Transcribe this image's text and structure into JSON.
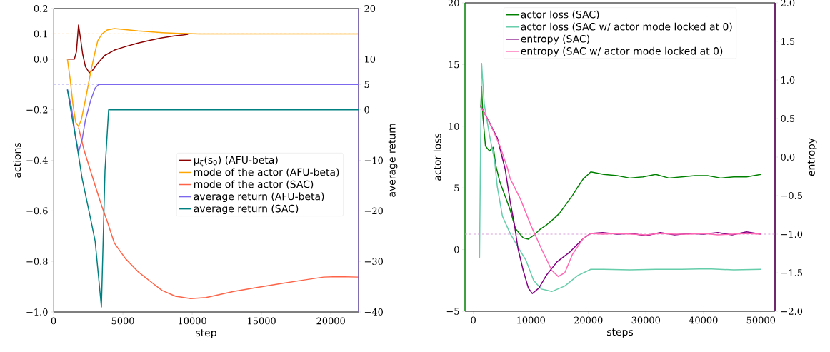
{
  "chart_data": [
    {
      "type": "line",
      "xlabel": "step",
      "ylabel": "actions",
      "y2label": "average return",
      "legend": "center right",
      "xlim": [
        0,
        22000
      ],
      "ylim": [
        -1.0,
        0.2
      ],
      "y2lim": [
        -40,
        20
      ],
      "xticks": [
        0,
        5000,
        10000,
        15000,
        20000
      ],
      "yticks": [
        {
          "value": -1.0,
          "label": "−1.0"
        },
        {
          "value": -0.8,
          "label": "−0.8"
        },
        {
          "value": -0.6,
          "label": "−0.6"
        },
        {
          "value": -0.4,
          "label": "−0.4"
        },
        {
          "value": -0.2,
          "label": "−0.2"
        },
        {
          "value": 0.0,
          "label": "0.0"
        },
        {
          "value": 0.1,
          "label": "0.1"
        },
        {
          "value": 0.2,
          "label": "0.2"
        }
      ],
      "y2ticks": [
        {
          "value": -40,
          "label": "−40"
        },
        {
          "value": -30,
          "label": "−30"
        },
        {
          "value": -20,
          "label": "−20"
        },
        {
          "value": -10,
          "label": "−10"
        },
        0,
        5,
        10,
        20
      ],
      "ref_lines": [
        {
          "axis": "y",
          "value": 0.1,
          "color": "#ffd8a0",
          "line_style": "dashed"
        },
        {
          "axis": "y2",
          "value": 5,
          "color": "#c4bdf5",
          "line_style": "dashed"
        }
      ],
      "series": [
        {
          "name": "μ$_{ζ}$(s$_{0}$) (AFU-beta)",
          "color": "#8b0000",
          "x": [
            1000,
            1500,
            1650,
            1800,
            1950,
            2100,
            2300,
            2580,
            2800,
            3200,
            3700,
            4400,
            5200,
            6100,
            7000,
            7800,
            8700,
            9700
          ],
          "values": [
            0.0,
            0.0,
            0.03,
            0.135,
            0.08,
            0.02,
            -0.03,
            -0.054,
            -0.045,
            -0.015,
            0.015,
            0.036,
            0.05,
            0.064,
            0.075,
            0.084,
            0.092,
            0.098
          ]
        },
        {
          "name": "mode of the actor (AFU-beta)",
          "color": "#ffa500",
          "x": [
            1000,
            1200,
            1400,
            1600,
            1800,
            2000,
            2300,
            2680,
            3000,
            3190,
            3500,
            3860,
            4380,
            5200,
            6080,
            7000,
            7830,
            9000,
            10500,
            14000,
            18000,
            22000
          ],
          "values": [
            0.0,
            -0.08,
            -0.18,
            -0.25,
            -0.266,
            -0.24,
            -0.16,
            -0.05,
            0.03,
            0.073,
            0.1,
            0.115,
            0.121,
            0.117,
            0.112,
            0.108,
            0.105,
            0.102,
            0.1,
            0.1,
            0.1,
            0.1
          ]
        },
        {
          "name": "mode of the actor (SAC)",
          "color": "#ff6347",
          "x": [
            1800,
            2200,
            2680,
            3000,
            3500,
            3860,
            4380,
            5200,
            6080,
            7000,
            7830,
            8800,
            9890,
            11000,
            12980,
            14500,
            16380,
            18000,
            19470,
            20500,
            22000
          ],
          "values": [
            -0.27,
            -0.36,
            -0.444,
            -0.5,
            -0.585,
            -0.64,
            -0.727,
            -0.79,
            -0.84,
            -0.88,
            -0.915,
            -0.938,
            -0.947,
            -0.943,
            -0.919,
            -0.905,
            -0.888,
            -0.874,
            -0.862,
            -0.86,
            -0.862
          ]
        },
        {
          "name": "average return (AFU-beta)",
          "color": "#7b68ee",
          "axis": "y2",
          "x": [
            1000,
            1290,
            1550,
            1800,
            2050,
            2300,
            2680,
            3000,
            3250,
            3600,
            22000
          ],
          "values": [
            4.0,
            0.5,
            -4.7,
            -8.4,
            -6,
            -2,
            1.9,
            4.3,
            5.0,
            5.0,
            5.0
          ]
        },
        {
          "name": "average return (SAC)",
          "color": "#008080",
          "axis": "y2",
          "x": [
            1000,
            1300,
            1500,
            1800,
            2060,
            2680,
            3000,
            3450,
            3710,
            3970,
            22000
          ],
          "values": [
            4.0,
            -1,
            -4,
            -9,
            -13.6,
            -21.7,
            -26,
            -39,
            -12,
            0,
            0
          ]
        }
      ]
    },
    {
      "type": "line",
      "xlabel": "steps",
      "ylabel": "actor loss",
      "y2label": "entropy",
      "legend": "top",
      "xlim": [
        -1450,
        52450
      ],
      "ylim": [
        -5,
        20
      ],
      "y2lim": [
        -2.0,
        2.0
      ],
      "xticks": [
        0,
        10000,
        20000,
        30000,
        40000,
        50000
      ],
      "yticks": [
        {
          "value": -5,
          "label": "−5"
        },
        0,
        5,
        10,
        15,
        20
      ],
      "y2ticks": [
        {
          "value": -2.0,
          "label": "−2.0"
        },
        {
          "value": -1.5,
          "label": "−1.5"
        },
        {
          "value": -1.0,
          "label": "−1.0"
        },
        {
          "value": -0.5,
          "label": "−0.5"
        },
        {
          "value": 0.0,
          "label": "0.0"
        },
        {
          "value": 0.5,
          "label": "0.5"
        },
        {
          "value": 1.0,
          "label": "1.0"
        },
        {
          "value": 1.5,
          "label": "1.5"
        },
        {
          "value": 2.0,
          "label": "2.0"
        }
      ],
      "ref_lines": [
        {
          "axis": "y2",
          "value": -1.0,
          "color": "#d9a0d9",
          "line_style": "dashed"
        }
      ],
      "series": [
        {
          "name": "actor loss (SAC)",
          "color": "#008000",
          "x": [
            1300,
            1440,
            1660,
            2110,
            2800,
            3470,
            3920,
            4600,
            5470,
            6410,
            7320,
            8670,
            9570,
            10480,
            11500,
            12730,
            14000,
            14990,
            16000,
            17250,
            18200,
            19060,
            20420,
            22670,
            25000,
            27190,
            29500,
            31710,
            34000,
            36230,
            38500,
            40740,
            43000,
            45260,
            47500,
            50000
          ],
          "values": [
            11.5,
            13.2,
            10.8,
            8.4,
            8.0,
            8.3,
            6.8,
            5.5,
            4.4,
            3.2,
            1.7,
            0.95,
            0.85,
            1.15,
            1.6,
            2.0,
            2.5,
            2.95,
            3.6,
            4.4,
            5.1,
            5.7,
            6.3,
            6.1,
            6.0,
            5.8,
            5.9,
            6.1,
            5.8,
            5.9,
            6.0,
            6.0,
            5.8,
            5.9,
            5.9,
            6.1
          ]
        },
        {
          "name": "actor loss (SAC w/ actor mode locked at 0)",
          "color": "#66cdaa",
          "x": [
            1000,
            1080,
            1250,
            1440,
            1890,
            2800,
            3700,
            4160,
            5060,
            6410,
            7770,
            9130,
            10480,
            11840,
            13640,
            15900,
            18160,
            20420,
            22670,
            27190,
            31700,
            36230,
            40740,
            45260,
            50000
          ],
          "values": [
            -0.7,
            -0.63,
            8.0,
            15.1,
            11.8,
            9.3,
            7.2,
            5.1,
            2.7,
            1.3,
            0.2,
            -0.85,
            -2.5,
            -3.2,
            -3.4,
            -2.95,
            -2.1,
            -1.6,
            -1.6,
            -1.65,
            -1.6,
            -1.6,
            -1.55,
            -1.65,
            -1.6
          ]
        },
        {
          "name": "entropy (SAC)",
          "color": "#800080",
          "axis": "y2",
          "x": [
            1220,
            2800,
            4160,
            5520,
            6410,
            7090,
            7770,
            8670,
            9570,
            10250,
            11390,
            12730,
            14540,
            16800,
            19060,
            20420,
            22500,
            25000,
            27500,
            30000,
            32500,
            35000,
            37500,
            40000,
            42500,
            45000,
            47500,
            50000
          ],
          "values": [
            0.67,
            0.45,
            0.25,
            -0.15,
            -0.58,
            -0.85,
            -1.19,
            -1.47,
            -1.7,
            -1.77,
            -1.7,
            -1.53,
            -1.36,
            -1.23,
            -1.06,
            -0.99,
            -0.98,
            -1.0,
            -0.99,
            -1.02,
            -0.98,
            -1.01,
            -0.99,
            -1.0,
            -0.98,
            -1.01,
            -0.97,
            -1.0
          ]
        },
        {
          "name": "entropy (SAC w/ actor mode locked at 0)",
          "color": "#ff69b4",
          "axis": "y2",
          "x": [
            1220,
            3230,
            4600,
            5970,
            6410,
            8220,
            10030,
            11840,
            13640,
            14770,
            15900,
            17250,
            19060,
            20420,
            22500,
            25000,
            27500,
            30000,
            32500,
            35000,
            37500,
            40000,
            42500,
            45000,
            47500,
            50000
          ],
          "values": [
            0.67,
            0.38,
            0.15,
            -0.15,
            -0.28,
            -0.55,
            -0.89,
            -1.19,
            -1.47,
            -1.55,
            -1.5,
            -1.26,
            -1.06,
            -0.99,
            -1.0,
            -0.99,
            -1.0,
            -1.01,
            -0.99,
            -1.0,
            -1.0,
            -0.99,
            -1.01,
            -1.0,
            -0.99,
            -1.0
          ]
        }
      ]
    }
  ]
}
